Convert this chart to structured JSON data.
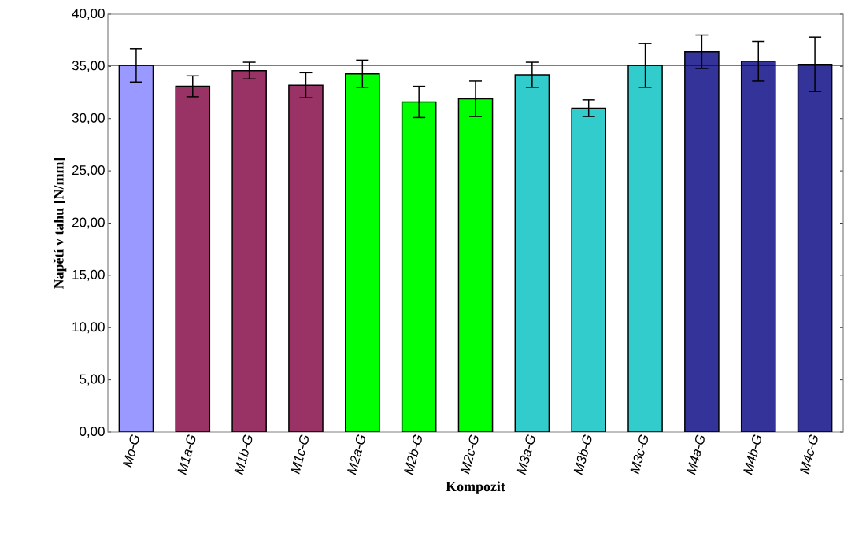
{
  "chart_data": {
    "type": "bar",
    "xlabel": "Kompozit",
    "ylabel": "Napětí v tahu [N/mm]",
    "categories": [
      "Mo-G",
      "M1a-G",
      "M1b-G",
      "M1c-G",
      "M2a-G",
      "M2b-G",
      "M2c-G",
      "M3a-G",
      "M3b-G",
      "M3c-G",
      "M4a-G",
      "M4b-G",
      "M4c-G"
    ],
    "values": [
      35.1,
      33.1,
      34.6,
      33.2,
      34.3,
      31.6,
      31.9,
      34.2,
      31.0,
      35.1,
      36.4,
      35.5,
      35.2
    ],
    "errors": [
      1.6,
      1.0,
      0.8,
      1.2,
      1.3,
      1.5,
      1.7,
      1.2,
      0.8,
      2.1,
      1.6,
      1.9,
      2.6
    ],
    "colors": [
      "#9999ff",
      "#993366",
      "#993366",
      "#993366",
      "#00ff00",
      "#00ff00",
      "#00ff00",
      "#33cccc",
      "#33cccc",
      "#33cccc",
      "#333399",
      "#333399",
      "#333399"
    ],
    "ylim": [
      0,
      40
    ],
    "yticks": [
      {
        "value": 0,
        "label": "0,00"
      },
      {
        "value": 5,
        "label": "5,00"
      },
      {
        "value": 10,
        "label": "10,00"
      },
      {
        "value": 15,
        "label": "15,00"
      },
      {
        "value": 20,
        "label": "20,00"
      },
      {
        "value": 25,
        "label": "25,00"
      },
      {
        "value": 30,
        "label": "30,00"
      },
      {
        "value": 35,
        "label": "35,00"
      },
      {
        "value": 40,
        "label": "40,00"
      }
    ],
    "ref_lines": [
      {
        "axis": "y",
        "value": 35.1,
        "color": "#000000"
      }
    ],
    "grid": false
  }
}
